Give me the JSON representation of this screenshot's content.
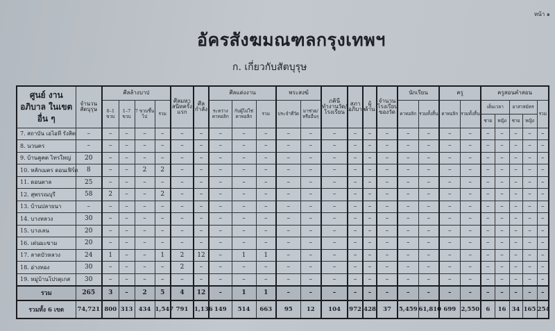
{
  "page_number": "หน้า ๑",
  "title": "อัครสังฆมณฑลกรุงเทพฯ",
  "subtitle": "ก. เกี่ยวกับสัตบุรุษ",
  "headers": {
    "center": "ศูนย์ งานอภิบาล ในเขตอื่น ๆ",
    "faithful": "จำนวนสัตบุรุษ",
    "baptism": "ศีลล้างบาป",
    "baptism_sub": [
      "0–1 ขวบ",
      "1–7 ขวบ",
      "7 ขวบขึ้นไป",
      "รวม"
    ],
    "first_communion": "ศีลมหาสนิทครั้งแรก",
    "confirmation": "ศีลกำลัง",
    "marriage": "ศีลแต่งงาน",
    "marriage_sub": [
      "ระหว่างคาทอลิก",
      "กับผู้ไม่ใช่คาทอลิก",
      "รวม"
    ],
    "priests": "พระสงฆ์",
    "priests_sub": [
      "ประจำที่วัด",
      "มาช่วย/หรืออื่นๆ"
    ],
    "sisters": "ภคินีทำงานวัด/โรงเรียน",
    "council": "สภาอภิบาล",
    "deceased": "ผู้ล้าน",
    "schools": "จำนวนโรงเรียนของวัด",
    "students": "นักเรียน",
    "students_sub": [
      "คาทอลิก",
      "รวมทั้งสิ้น"
    ],
    "teachers": "ครู",
    "teachers_sub": [
      "คาทอลิก",
      "รวมทั้งสิ้น"
    ],
    "catechists": "ครูสอนคำสอน",
    "catechists_fulltime": "เต็มเวลา",
    "catechists_volunteer": "อาสาสมัคร",
    "male": "ชาย",
    "female": "หญิง",
    "total": "รวม"
  },
  "rows": [
    {
      "name": "7.  สถาบัน เอไอที รังสิต",
      "values": [
        "–",
        "–",
        "–",
        "–",
        "–",
        "–",
        "–",
        "–",
        "–",
        "–",
        "–",
        "–",
        "–",
        "–",
        "–",
        "–",
        "–",
        "–",
        "–",
        "–",
        "–",
        "–",
        "–",
        "–",
        "–"
      ]
    },
    {
      "name": "8.  นวนคร",
      "values": [
        "–",
        "–",
        "–",
        "–",
        "–",
        "–",
        "–",
        "–",
        "–",
        "–",
        "–",
        "–",
        "–",
        "–",
        "–",
        "–",
        "–",
        "–",
        "–",
        "–",
        "–",
        "–",
        "–",
        "–",
        "–"
      ]
    },
    {
      "name": "9.  บ้านคูคต ไทรใหญ่",
      "values": [
        "20",
        "–",
        "–",
        "–",
        "–",
        "–",
        "–",
        "–",
        "–",
        "–",
        "–",
        "–",
        "–",
        "–",
        "–",
        "–",
        "–",
        "–",
        "–",
        "–",
        "–",
        "–",
        "–",
        "–",
        "–"
      ]
    },
    {
      "name": "10. หลักเมตร ดอนเฟิร์ด",
      "values": [
        "8",
        "–",
        "–",
        "2",
        "2",
        "–",
        "–",
        "–",
        "–",
        "–",
        "–",
        "–",
        "–",
        "–",
        "–",
        "–",
        "–",
        "–",
        "–",
        "–",
        "–",
        "–",
        "–",
        "–",
        "–"
      ]
    },
    {
      "name": "11. ดอนตาล",
      "values": [
        "25",
        "–",
        "–",
        "–",
        "–",
        "–",
        "–",
        "–",
        "–",
        "–",
        "–",
        "–",
        "–",
        "–",
        "–",
        "–",
        "–",
        "–",
        "–",
        "–",
        "–",
        "–",
        "–",
        "–",
        "–"
      ]
    },
    {
      "name": "12. สุพรรณบุรี",
      "values": [
        "58",
        "2",
        "–",
        "–",
        "2",
        "–",
        "–",
        "–",
        "–",
        "–",
        "–",
        "–",
        "–",
        "–",
        "–",
        "–",
        "–",
        "–",
        "–",
        "–",
        "–",
        "–",
        "–",
        "–",
        "–"
      ]
    },
    {
      "name": "13. บ้านปลายนา",
      "values": [
        "–",
        "–",
        "–",
        "–",
        "–",
        "–",
        "–",
        "–",
        "–",
        "–",
        "–",
        "–",
        "–",
        "–",
        "–",
        "–",
        "–",
        "–",
        "–",
        "–",
        "–",
        "–",
        "–",
        "–",
        "–"
      ]
    },
    {
      "name": "14. บางหลวง",
      "values": [
        "30",
        "–",
        "–",
        "–",
        "–",
        "–",
        "–",
        "–",
        "–",
        "–",
        "–",
        "–",
        "–",
        "–",
        "–",
        "–",
        "–",
        "–",
        "–",
        "–",
        "–",
        "–",
        "–",
        "–",
        "–"
      ]
    },
    {
      "name": "15. บางเลน",
      "values": [
        "20",
        "–",
        "–",
        "–",
        "–",
        "–",
        "–",
        "–",
        "–",
        "–",
        "–",
        "–",
        "–",
        "–",
        "–",
        "–",
        "–",
        "–",
        "–",
        "–",
        "–",
        "–",
        "–",
        "–",
        "–"
      ]
    },
    {
      "name": "16. เด่นมะขาม",
      "values": [
        "20",
        "–",
        "–",
        "–",
        "–",
        "–",
        "–",
        "–",
        "–",
        "–",
        "–",
        "–",
        "–",
        "–",
        "–",
        "–",
        "–",
        "–",
        "–",
        "–",
        "–",
        "–",
        "–",
        "–",
        "–"
      ]
    },
    {
      "name": "17. ลาดบัวหลวง",
      "values": [
        "24",
        "1",
        "–",
        "–",
        "1",
        "2",
        "12",
        "–",
        "1",
        "1",
        "–",
        "–",
        "–",
        "–",
        "–",
        "–",
        "–",
        "–",
        "–",
        "–",
        "–",
        "–",
        "–",
        "–",
        "–"
      ]
    },
    {
      "name": "18. อ่างทอง",
      "values": [
        "30",
        "–",
        "–",
        "–",
        "–",
        "2",
        "–",
        "–",
        "–",
        "–",
        "–",
        "–",
        "–",
        "–",
        "–",
        "–",
        "–",
        "–",
        "–",
        "–",
        "–",
        "–",
        "–",
        "–",
        "–"
      ]
    },
    {
      "name": "19. หมู่บ้านโปรตุเกส",
      "values": [
        "30",
        "–",
        "–",
        "–",
        "–",
        "–",
        "–",
        "–",
        "–",
        "–",
        "–",
        "–",
        "–",
        "–",
        "–",
        "–",
        "–",
        "–",
        "–",
        "–",
        "–",
        "–",
        "–",
        "–",
        "–"
      ]
    }
  ],
  "sum_row": {
    "name": "รวม",
    "values": [
      "265",
      "3",
      "–",
      "2",
      "5",
      "4",
      "12",
      "–",
      "1",
      "1",
      "–",
      "–",
      "–",
      "–",
      "–",
      "–",
      "–",
      "–",
      "–",
      "–",
      "–",
      "–",
      "–",
      "–",
      "–"
    ]
  },
  "grand_total_row": {
    "name": "รวมทั้ง 6 เขต",
    "values": [
      "74,721",
      "800",
      "313",
      "434",
      "1,547",
      "791",
      "1,136",
      "149",
      "514",
      "663",
      "95",
      "12",
      "104",
      "972",
      "428",
      "37",
      "5,459",
      "61,810",
      "699",
      "2,550",
      "6",
      "16",
      "34",
      "165",
      "254"
    ]
  }
}
